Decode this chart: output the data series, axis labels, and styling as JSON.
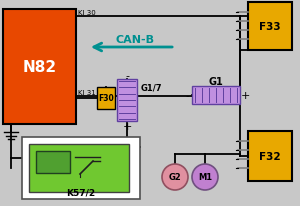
{
  "bg_color": "#c8c8c8",
  "n82_color": "#e84800",
  "n82_label": "N82",
  "f33_color": "#e8a800",
  "f33_label": "F33",
  "f32_color": "#e8a800",
  "f32_label": "F32",
  "f30_color": "#e8a800",
  "f30_label": "F30",
  "g1_color": "#c090e0",
  "g1_label": "G1",
  "g17_color": "#c090e0",
  "g17_label": "G1/7",
  "k572_color": "#70c830",
  "k572_outer": "#e8e8e8",
  "k572_label": "K57/2",
  "g2_color": "#e090a0",
  "g2_label": "G2",
  "m1_color": "#c080d0",
  "m1_label": "M1",
  "canb_label": "CAN-B",
  "ki30_label": "KI 30",
  "ki31_label": "KI 31",
  "wire_color": "#000000",
  "pin_color": "#808080"
}
